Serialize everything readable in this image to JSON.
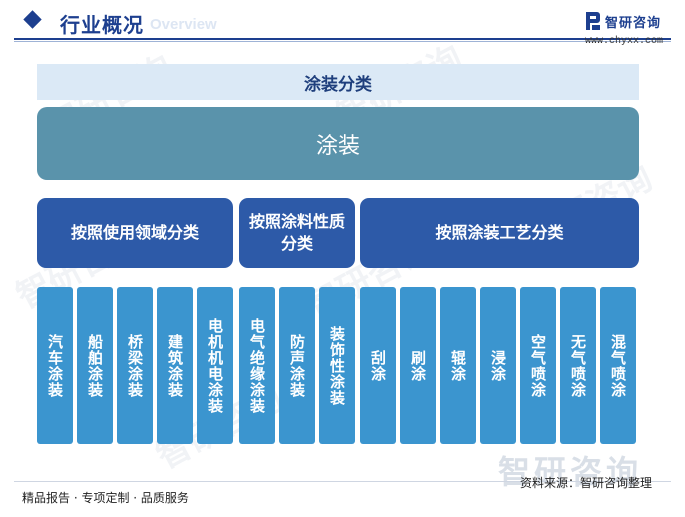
{
  "header": {
    "title": "行业概况",
    "subtitle": "Overview",
    "logo_name": "智研咨询",
    "logo_url": "www.chyxx.com"
  },
  "diagram": {
    "banner": "涂装分类",
    "root": "涂装",
    "categories": [
      {
        "label": "按照使用领域分类",
        "items": [
          "汽车涂装",
          "船舶涂装",
          "桥梁涂装",
          "建筑涂装",
          "电机机电涂装"
        ]
      },
      {
        "label": "按照涂料性质分类",
        "items": [
          "电气绝缘涂装",
          "防声涂装",
          "装饰性涂装"
        ]
      },
      {
        "label": "按照涂装工艺分类",
        "items": [
          "刮涂",
          "刷涂",
          "辊涂",
          "浸涂",
          "空气喷涂",
          "无气喷涂",
          "混气喷涂"
        ]
      }
    ]
  },
  "footer": {
    "left": "精品报告 · 专项定制 · 品质服务",
    "source": "资料来源：智研咨询整理",
    "watermark": "智研咨询"
  },
  "colors": {
    "brand": "#1d3f8f",
    "banner_bg": "#dbe9f6",
    "root_bg": "#5a93ab",
    "category_bg": "#2d5aa8",
    "leaf_bg": "#3b95cf"
  }
}
